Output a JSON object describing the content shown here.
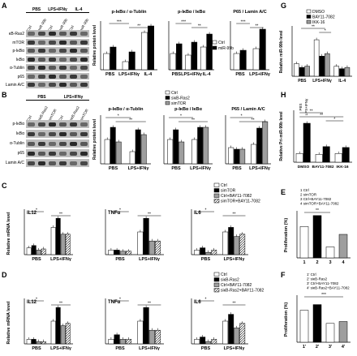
{
  "panels": {
    "A": {
      "label": "A",
      "groups": [
        "PBS",
        "LPS+IFNγ",
        "IL-4"
      ],
      "lanes": [
        "Ctrl",
        "miR-99b",
        "Ctrl",
        "miR-99b",
        "Ctrl",
        "miR-99b"
      ],
      "rows": [
        "κB-Ras2",
        "mTOR",
        "p-IκBα",
        "IκBα",
        "α-Tublin",
        "p65",
        "Lamin A/C"
      ],
      "charts": [
        {
          "title": "p-IκBα / α-Tublin",
          "ylabel": "Relative protein level",
          "xcats": [
            "PBS",
            "LPS+IFNγ",
            "IL-4"
          ],
          "legend": [
            "Ctrl",
            "miR-99b"
          ]
        },
        {
          "title": "p-IκBα / IκBα",
          "xcats": [
            "PBS",
            "LPS+IFNγ",
            "IL-4"
          ]
        },
        {
          "title": "P65 / Lamin A/C",
          "xcats": [
            "PBS",
            "LPS+IFNγ"
          ]
        }
      ]
    },
    "B": {
      "label": "B",
      "groups": [
        "PBS",
        "LPS+IFNγ"
      ],
      "lanes": [
        "Ctrl",
        "siκB-Ras2",
        "simTOR",
        "Ctrl",
        "siκB-Ras2",
        "simTOR"
      ],
      "rows": [
        "p-IκBα",
        "IκBα",
        "α-Tublin",
        "p65",
        "Lamin A/C"
      ],
      "legend": [
        "Ctrl",
        "siκB-Ras2",
        "simTOR"
      ],
      "charts": [
        {
          "title": "p-IκBα / α-Tublin",
          "ylabel": "Relative protein level",
          "xcats": [
            "PBS",
            "LPS+IFNγ"
          ]
        },
        {
          "title": "p-IκBα / IκBα",
          "xcats": [
            "PBS",
            "LPS+IFNγ"
          ]
        },
        {
          "title": "P65 / Lamin A/C",
          "xcats": [
            "PBS",
            "LPS+IFNγ"
          ]
        }
      ]
    },
    "C": {
      "label": "C",
      "ylabel": "Relative mRNA level",
      "legend": [
        "Ctrl",
        "simTOR",
        "Ctrl+BAY11-7082",
        "simTOR+BAY11-7082"
      ],
      "genes": [
        "IL12",
        "TNFα",
        "IL6"
      ],
      "xcats": [
        "PBS",
        "LPS+IFNγ"
      ]
    },
    "D": {
      "label": "D",
      "ylabel": "Relative mRNA level",
      "legend": [
        "Ctrl",
        "siκB-Ras2",
        "Ctrl+BAY11-7082",
        "siκB-Ras2+BAY11-7082"
      ],
      "genes": [
        "IL12",
        "TNFα",
        "IL6"
      ],
      "xcats": [
        "PBS",
        "LPS+IFNγ"
      ]
    },
    "G": {
      "label": "G",
      "ylabel": "Relative miR-99b level",
      "legend": [
        "DMSO",
        "BAY11-7082",
        "IKK-16"
      ],
      "xcats": [
        "PBS",
        "LPS+IFNγ",
        "IL-4"
      ]
    },
    "H": {
      "label": "H",
      "ylabel": "Relative Pri-miR-99b level",
      "xcats": [
        "DMSO",
        "BAY11-7082",
        "IKK-16"
      ],
      "bar_labels": [
        "PBS",
        "LPS+IFNγ"
      ]
    },
    "E": {
      "label": "E",
      "ylabel": "Proliferation (%)",
      "legend": [
        "1 Ctrl",
        "2 simTOR",
        "3 Ctrl+BAY11-7082",
        "4 simTOR+BAY11-7082"
      ],
      "xcats": [
        "1",
        "2",
        "3",
        "4"
      ]
    },
    "F": {
      "label": "F",
      "ylabel": "Proliferation (%)",
      "legend": [
        "1' Ctrl",
        "2' siκB-Ras2",
        "3' Ctrl+BAY11-7082",
        "4' siκB-Ras2+BAY11-7082"
      ],
      "xcats": [
        "1'",
        "2'",
        "3'",
        "4'"
      ]
    }
  },
  "chart_data": [
    {
      "type": "bar",
      "panel": "E",
      "categories": [
        "1",
        "2",
        "3",
        "4"
      ],
      "values": [
        20,
        27,
        7,
        15
      ],
      "ylim": [
        0,
        30
      ],
      "ylabel": "Proliferation (%)"
    },
    {
      "type": "bar",
      "panel": "F",
      "categories": [
        "1'",
        "2'",
        "3'",
        "4'"
      ],
      "values": [
        17,
        20,
        10,
        11
      ],
      "ylim": [
        0,
        25
      ],
      "ylabel": "Proliferation (%)"
    },
    {
      "type": "bar",
      "panel": "G",
      "categories": [
        "PBS",
        "LPS+IFNγ",
        "IL-4"
      ],
      "ylabel": "Relative miR-99b level",
      "ylim": [
        0,
        4
      ],
      "series": [
        {
          "name": "DMSO",
          "values": [
            1.0,
            2.9,
            0.8
          ]
        },
        {
          "name": "BAY11-7082",
          "values": [
            0.7,
            1.6,
            0.6
          ]
        },
        {
          "name": "IKK-16",
          "values": [
            0.8,
            1.8,
            0.7
          ]
        }
      ]
    },
    {
      "type": "bar",
      "panel": "H",
      "categories": [
        "DMSO",
        "BAY11-7082",
        "IKK-16"
      ],
      "ylabel": "Relative Pri-miR-99b level",
      "ylim": [
        0,
        6
      ],
      "series": [
        {
          "name": "PBS",
          "values": [
            1.0,
            0.9,
            1.0
          ]
        },
        {
          "name": "LPS+IFNγ",
          "values": [
            4.5,
            1.8,
            1.7
          ]
        }
      ]
    },
    {
      "type": "bar",
      "panel": "A",
      "title": "p-IκBα / α-Tublin",
      "categories": [
        "PBS",
        "LPS+IFNγ",
        "IL-4"
      ],
      "ylim": [
        0,
        3
      ],
      "series": [
        {
          "name": "Ctrl",
          "values": [
            1.0,
            0.5,
            2.3
          ]
        },
        {
          "name": "miR-99b",
          "values": [
            1.4,
            1.1,
            2.7
          ]
        }
      ]
    },
    {
      "type": "bar",
      "panel": "A",
      "title": "p-IκBα / IκBα",
      "categories": [
        "PBS",
        "LPS+IFNγ",
        "IL-4"
      ],
      "ylim": [
        0,
        3
      ],
      "series": [
        {
          "name": "Ctrl",
          "values": [
            1.0,
            0.9,
            1.4
          ]
        },
        {
          "name": "miR-99b",
          "values": [
            1.6,
            1.7,
            2.2
          ]
        }
      ]
    },
    {
      "type": "bar",
      "panel": "A",
      "title": "P65 / Lamin A/C",
      "categories": [
        "PBS",
        "LPS+IFNγ"
      ],
      "ylim": [
        0,
        3
      ],
      "series": [
        {
          "name": "Ctrl",
          "values": [
            1.0,
            1.3
          ]
        },
        {
          "name": "miR-99b",
          "values": [
            1.2,
            2.5
          ]
        }
      ]
    },
    {
      "type": "bar",
      "panel": "B",
      "title": "p-IκBα / α-Tublin",
      "categories": [
        "PBS",
        "LPS+IFNγ"
      ],
      "ylim": [
        0,
        2
      ],
      "series": [
        {
          "name": "Ctrl",
          "values": [
            1.0,
            0.5
          ]
        },
        {
          "name": "siκB-Ras2",
          "values": [
            1.5,
            1.4
          ]
        },
        {
          "name": "simTOR",
          "values": [
            0.9,
            1.2
          ]
        }
      ]
    },
    {
      "type": "bar",
      "panel": "B",
      "title": "p-IκBα / IκBα",
      "categories": [
        "PBS",
        "LPS+IFNγ"
      ],
      "ylim": [
        0,
        2
      ],
      "series": [
        {
          "name": "Ctrl",
          "values": [
            1.0,
            1.0
          ]
        },
        {
          "name": "siκB-Ras2",
          "values": [
            1.4,
            1.5
          ]
        },
        {
          "name": "simTOR",
          "values": [
            0.9,
            1.5
          ]
        }
      ]
    },
    {
      "type": "bar",
      "panel": "B",
      "title": "P65 / Lamin A/C",
      "categories": [
        "PBS",
        "LPS+IFNγ"
      ],
      "ylim": [
        0,
        3
      ],
      "series": [
        {
          "name": "Ctrl",
          "values": [
            1.0,
            1.2
          ]
        },
        {
          "name": "siκB-Ras2",
          "values": [
            0.9,
            2.2
          ]
        },
        {
          "name": "simTOR",
          "values": [
            0.9,
            2.6
          ]
        }
      ]
    },
    {
      "type": "bar",
      "panel": "C",
      "title": "IL12",
      "categories": [
        "PBS",
        "LPS+IFNγ"
      ],
      "ylim": [
        0,
        2
      ],
      "series": [
        {
          "name": "Ctrl",
          "values": [
            0.3,
            1.2
          ]
        },
        {
          "name": "simTOR",
          "values": [
            0.4,
            1.6
          ]
        },
        {
          "name": "Ctrl+BAY11-7082",
          "values": [
            0.2,
            0.9
          ]
        },
        {
          "name": "simTOR+BAY11-7082",
          "values": [
            0.25,
            0.9
          ]
        }
      ]
    },
    {
      "type": "bar",
      "panel": "C",
      "title": "TNFα",
      "categories": [
        "PBS",
        "LPS+IFNγ"
      ],
      "ylim": [
        0,
        2
      ],
      "series": [
        {
          "name": "Ctrl",
          "values": [
            0.2,
            1.0
          ]
        },
        {
          "name": "simTOR",
          "values": [
            0.2,
            1.6
          ]
        },
        {
          "name": "Ctrl+BAY11-7082",
          "values": [
            0.15,
            0.6
          ]
        },
        {
          "name": "simTOR+BAY11-7082",
          "values": [
            0.15,
            0.6
          ]
        }
      ]
    },
    {
      "type": "bar",
      "panel": "C",
      "title": "IL6",
      "categories": [
        "PBS",
        "LPS+IFNγ"
      ],
      "ylim": [
        0,
        2
      ],
      "series": [
        {
          "name": "Ctrl",
          "values": [
            0.2,
            1.0
          ]
        },
        {
          "name": "simTOR",
          "values": [
            0.3,
            1.2
          ]
        },
        {
          "name": "Ctrl+BAY11-7082",
          "values": [
            0.1,
            0.8
          ]
        },
        {
          "name": "simTOR+BAY11-7082",
          "values": [
            0.2,
            0.9
          ]
        }
      ]
    },
    {
      "type": "bar",
      "panel": "D",
      "title": "IL12",
      "categories": [
        "PBS",
        "LPS+IFNγ"
      ],
      "ylim": [
        0,
        2
      ],
      "series": [
        {
          "name": "Ctrl",
          "values": [
            0.2,
            1.0
          ]
        },
        {
          "name": "siκB-Ras2",
          "values": [
            0.2,
            1.6
          ]
        },
        {
          "name": "Ctrl+BAY11-7082",
          "values": [
            0.1,
            0.8
          ]
        },
        {
          "name": "siκB-Ras2+BAY11-7082",
          "values": [
            0.1,
            0.9
          ]
        }
      ]
    },
    {
      "type": "bar",
      "panel": "D",
      "title": "TNFα",
      "categories": [
        "PBS",
        "LPS+IFNγ"
      ],
      "ylim": [
        0,
        2
      ],
      "series": [
        {
          "name": "Ctrl",
          "values": [
            0.2,
            1.0
          ]
        },
        {
          "name": "siκB-Ras2",
          "values": [
            0.4,
            1.6
          ]
        },
        {
          "name": "Ctrl+BAY11-7082",
          "values": [
            0.2,
            0.6
          ]
        },
        {
          "name": "siκB-Ras2+BAY11-7082",
          "values": [
            0.2,
            0.6
          ]
        }
      ]
    },
    {
      "type": "bar",
      "panel": "D",
      "title": "IL6",
      "categories": [
        "PBS",
        "LPS+IFNγ"
      ],
      "ylim": [
        0,
        2
      ],
      "series": [
        {
          "name": "Ctrl",
          "values": [
            0.2,
            1.0
          ]
        },
        {
          "name": "siκB-Ras2",
          "values": [
            0.3,
            1.3
          ]
        },
        {
          "name": "Ctrl+BAY11-7082",
          "values": [
            0.1,
            0.7
          ]
        },
        {
          "name": "siκB-Ras2+BAY11-7082",
          "values": [
            0.2,
            0.9
          ]
        }
      ]
    }
  ]
}
